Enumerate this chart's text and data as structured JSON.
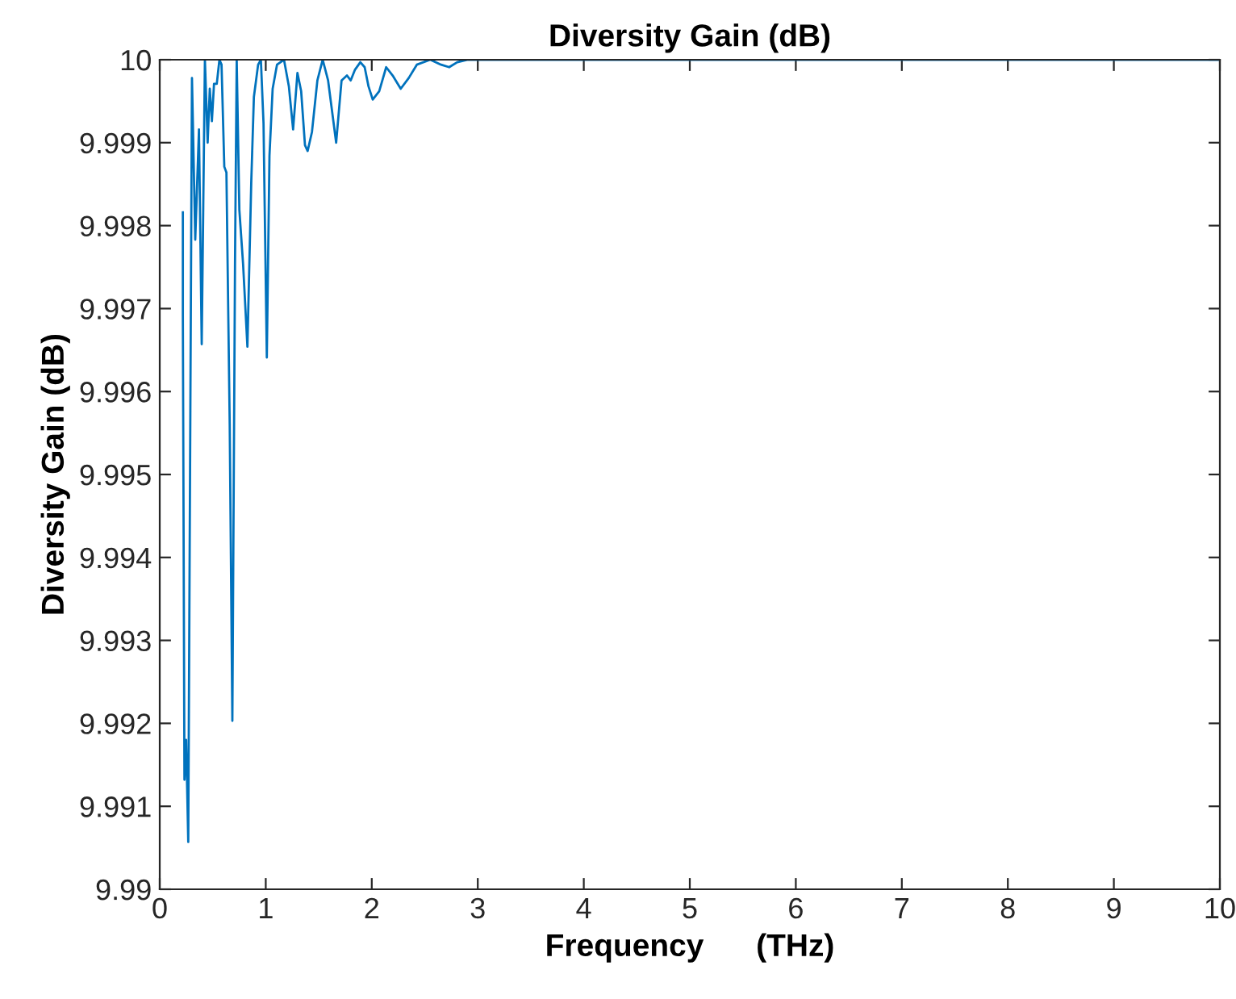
{
  "chart_data": {
    "type": "line",
    "title": "Diversity Gain (dB)",
    "xlabel": "Frequency      (THz)",
    "ylabel": "Diversity Gain (dB)",
    "series": [
      {
        "color": "#0072bd",
        "x": [
          0.218,
          0.218,
          0.233,
          0.249,
          0.269,
          0.304,
          0.335,
          0.37,
          0.396,
          0.426,
          0.452,
          0.472,
          0.492,
          0.512,
          0.538,
          0.563,
          0.583,
          0.609,
          0.629,
          0.66,
          0.685,
          0.71,
          0.726,
          0.751,
          0.786,
          0.827,
          0.863,
          0.888,
          0.928,
          0.954,
          0.979,
          1.01,
          1.035,
          1.065,
          1.106,
          1.172,
          1.218,
          1.258,
          1.299,
          1.334,
          1.37,
          1.395,
          1.436,
          1.487,
          1.537,
          1.588,
          1.664,
          1.715,
          1.766,
          1.801,
          1.842,
          1.892,
          1.933,
          1.969,
          2.009,
          2.07,
          2.136,
          2.197,
          2.273,
          2.349,
          2.425,
          2.552,
          2.654,
          2.73,
          2.806,
          2.907,
          10
        ],
        "values": [
          9.99816,
          9.99693,
          9.99132,
          9.9918,
          9.99057,
          9.99978,
          9.99783,
          9.99916,
          9.99657,
          10.0,
          9.999,
          9.99965,
          9.99926,
          9.99971,
          9.99971,
          10.0,
          9.99994,
          9.99871,
          9.99864,
          9.9956,
          9.99203,
          9.99754,
          10.0,
          9.99819,
          9.99754,
          9.99654,
          9.99851,
          9.99955,
          9.99994,
          10.0,
          9.99923,
          9.99641,
          9.99884,
          9.99965,
          9.99994,
          10.0,
          9.99968,
          9.99916,
          9.99984,
          9.99962,
          9.99897,
          9.9989,
          9.99913,
          9.99975,
          10.0,
          9.99975,
          9.999,
          9.99975,
          9.99981,
          9.99975,
          9.99988,
          9.99997,
          9.99991,
          9.99968,
          9.99952,
          9.99962,
          9.99991,
          9.99981,
          9.99965,
          9.99978,
          9.99994,
          10.0,
          9.99994,
          9.99991,
          9.99997,
          10.0,
          10.0
        ]
      }
    ],
    "xlim": [
      0,
      10
    ],
    "xticks": [
      0,
      1,
      2,
      3,
      4,
      5,
      6,
      7,
      8,
      9,
      10
    ],
    "ylim": [
      9.99,
      10
    ],
    "yticks": [
      9.99,
      9.991,
      9.992,
      9.993,
      9.994,
      9.995,
      9.996,
      9.997,
      9.998,
      9.999,
      10
    ],
    "grid": false,
    "marker": "none",
    "line_style": "solid"
  }
}
